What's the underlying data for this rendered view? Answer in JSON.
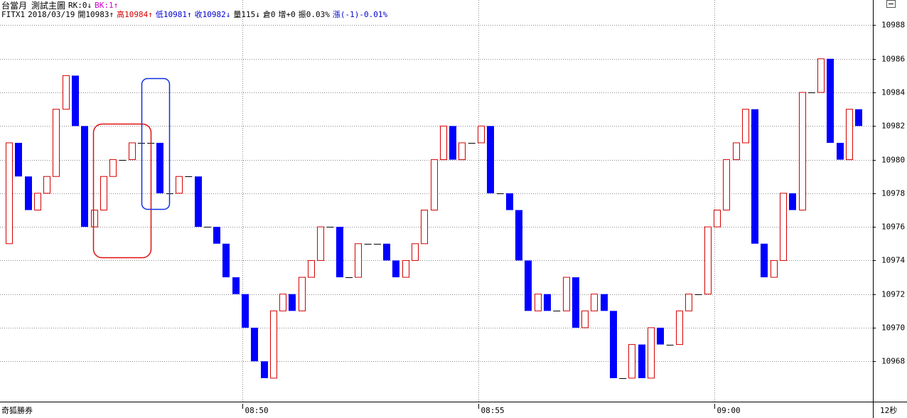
{
  "chart_data": {
    "type": "candlestick",
    "title": "台當月",
    "subtitle": "測試主圖",
    "info_lines": [
      [
        {
          "text": "RK:0↓",
          "color": "#000000"
        },
        {
          "text": "BK:1↑",
          "color": "#cc00cc"
        }
      ],
      [
        {
          "text": "FITX1",
          "color": "#000000"
        },
        {
          "text": "2018/03/19",
          "color": "#000000"
        },
        {
          "text": "開10983↑",
          "color": "#000000"
        },
        {
          "text": "高10984↑",
          "color": "#d40000"
        },
        {
          "text": "低10981↑",
          "color": "#0000d0"
        },
        {
          "text": "收10982↓",
          "color": "#0000d0"
        },
        {
          "text": "量115↓",
          "color": "#000000"
        },
        {
          "text": "倉0",
          "color": "#000000"
        },
        {
          "text": "增+0",
          "color": "#000000"
        },
        {
          "text": "振0.03%",
          "color": "#000000"
        },
        {
          "text": "漲(-1)-0.01%",
          "color": "#0000d0"
        }
      ]
    ],
    "footer_left": "奇狐勝券",
    "period": "12秒",
    "categories": [
      null,
      null,
      null,
      null,
      null,
      null,
      null,
      null,
      null,
      null,
      null,
      null,
      null,
      null,
      null,
      null,
      null,
      null,
      null,
      null,
      null,
      null,
      null,
      null,
      null,
      "08:50",
      null,
      null,
      null,
      null,
      null,
      null,
      null,
      null,
      null,
      null,
      null,
      null,
      null,
      null,
      null,
      null,
      null,
      null,
      null,
      null,
      null,
      null,
      null,
      null,
      "08:55",
      null,
      null,
      null,
      null,
      null,
      null,
      null,
      null,
      null,
      null,
      null,
      null,
      null,
      null,
      null,
      null,
      null,
      null,
      null,
      null,
      null,
      null,
      null,
      null,
      "09:00",
      null,
      null,
      null,
      null,
      null,
      null,
      null,
      null,
      null,
      null,
      null,
      null,
      null,
      null,
      null
    ],
    "open": [
      10975,
      10981,
      10979,
      10977,
      10978,
      10979,
      10983,
      10985,
      10982,
      10976,
      10977,
      10979,
      10980,
      10980,
      10981,
      10981,
      10981,
      10978,
      10978,
      10979,
      10979,
      10976,
      10976,
      10975,
      10973,
      10972,
      10970,
      10968,
      10967,
      10971,
      10972,
      10971,
      10973,
      10974,
      10976,
      10976,
      10973,
      10973,
      10975,
      10975,
      10975,
      10974,
      10973,
      10974,
      10975,
      10977,
      10980,
      10982,
      10980,
      10981,
      10981,
      10982,
      10978,
      10978,
      10977,
      10974,
      10971,
      10972,
      10971,
      10971,
      10973,
      10970,
      10971,
      10972,
      10971,
      10967,
      10967,
      10969,
      10967,
      10970,
      10969,
      10969,
      10971,
      10972,
      10972,
      10976,
      10977,
      10980,
      10981,
      10983,
      10975,
      10973,
      10974,
      10978,
      10977,
      10984,
      10984,
      10986,
      10981,
      10980,
      10983
    ],
    "close": [
      10981,
      10979,
      10977,
      10978,
      10979,
      10983,
      10985,
      10982,
      10976,
      10977,
      10979,
      10980,
      10980,
      10981,
      10981,
      10981,
      10978,
      10978,
      10979,
      10979,
      10976,
      10976,
      10975,
      10973,
      10972,
      10970,
      10968,
      10967,
      10971,
      10972,
      10971,
      10973,
      10974,
      10976,
      10976,
      10973,
      10973,
      10975,
      10975,
      10975,
      10974,
      10973,
      10974,
      10975,
      10977,
      10980,
      10982,
      10980,
      10981,
      10981,
      10982,
      10978,
      10978,
      10977,
      10974,
      10971,
      10972,
      10971,
      10971,
      10973,
      10970,
      10971,
      10972,
      10971,
      10967,
      10967,
      10969,
      10967,
      10970,
      10969,
      10969,
      10971,
      10972,
      10972,
      10976,
      10977,
      10980,
      10981,
      10983,
      10975,
      10973,
      10974,
      10978,
      10977,
      10984,
      10984,
      10986,
      10981,
      10980,
      10983,
      10982
    ],
    "up_color": "#d40000",
    "down_color": "#0000ff",
    "flat_color": "#000000",
    "ylim": [
      10965.6,
      10989.5
    ],
    "yticks": [
      10968,
      10970,
      10972,
      10974,
      10976,
      10978,
      10980,
      10982,
      10984,
      10986,
      10988
    ],
    "grid": true
  }
}
